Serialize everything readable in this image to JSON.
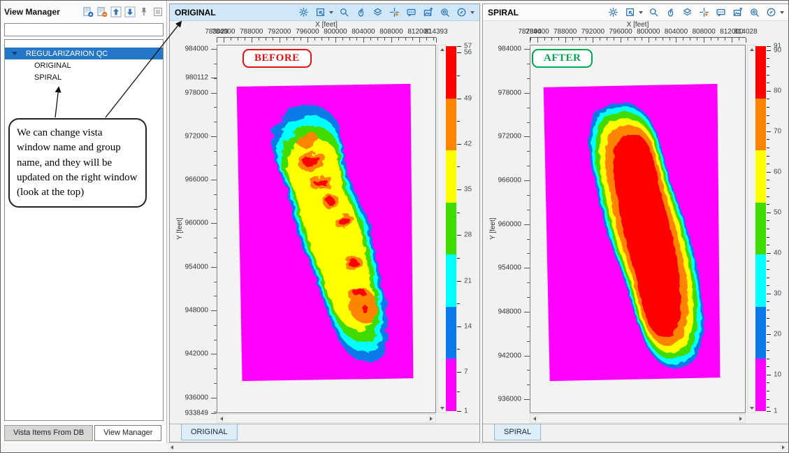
{
  "palette": {
    "red": "#ff0000",
    "orange": "#ff8400",
    "yellow": "#ffff00",
    "green": "#3fdc00",
    "cyan": "#00ffff",
    "blue": "#0a78e8",
    "magenta": "#ff00ff",
    "accent_blue": "#2e75b6",
    "selection_blue": "#2577c9",
    "active_titlebar": "#cfe7f8"
  },
  "left_panel": {
    "title": "View Manager",
    "toolbar": [
      {
        "name": "add-view-icon"
      },
      {
        "name": "remove-view-icon"
      },
      {
        "name": "move-up-icon"
      },
      {
        "name": "move-down-icon"
      },
      {
        "name": "pin-icon"
      },
      {
        "name": "detach-icon"
      }
    ],
    "filter_value": "",
    "tree": {
      "group": "REGULARIZARION QC",
      "items": [
        "ORIGINAL",
        "SPIRAL"
      ]
    },
    "callout": "We can change vista window name and group name, and they will be updated on the right window (look at the top)",
    "tabs": [
      {
        "label": "Vista Items From DB",
        "active": false
      },
      {
        "label": "View Manager",
        "active": true
      }
    ]
  },
  "window_toolbar": [
    {
      "name": "settings-gear-icon"
    },
    {
      "name": "fit-view-icon",
      "caret": true
    },
    {
      "name": "zoom-icon"
    },
    {
      "name": "rubber-band-zoom-icon"
    },
    {
      "name": "layers-icon"
    },
    {
      "name": "crosshair-pick-icon"
    },
    {
      "name": "comment-icon"
    },
    {
      "name": "snapshot-icon"
    },
    {
      "name": "find-zoom-icon"
    },
    {
      "name": "compass-icon",
      "caret": true
    }
  ],
  "windows": [
    {
      "title": "ORIGINAL",
      "tab": "ORIGINAL",
      "active": true,
      "annotation": {
        "label": "BEFORE",
        "color": "#e01212"
      },
      "xaxis": {
        "label": "X [feet]",
        "min": 783029,
        "max": 814393,
        "minor": 1000,
        "ticks": [
          {
            "v": 783029,
            "label": "783029"
          },
          {
            "v": 784000,
            "label": "784000"
          },
          {
            "v": 788000,
            "label": "788000"
          },
          {
            "v": 792000,
            "label": "792000"
          },
          {
            "v": 796000,
            "label": "796000"
          },
          {
            "v": 800000,
            "label": "800000"
          },
          {
            "v": 804000,
            "label": "804000"
          },
          {
            "v": 808000,
            "label": "808000"
          },
          {
            "v": 812000,
            "label": "812000"
          },
          {
            "v": 814393,
            "label": "814393"
          }
        ]
      },
      "yaxis": {
        "label": "Y [feet]",
        "min": 933849,
        "max": 984600,
        "minor": 2000,
        "ticks": [
          {
            "v": 984000,
            "label": "984000"
          },
          {
            "v": 980112,
            "label": "980112"
          },
          {
            "v": 978000,
            "label": "978000"
          },
          {
            "v": 972000,
            "label": "972000"
          },
          {
            "v": 966000,
            "label": "966000"
          },
          {
            "v": 960000,
            "label": "960000"
          },
          {
            "v": 954000,
            "label": "954000"
          },
          {
            "v": 948000,
            "label": "948000"
          },
          {
            "v": 942000,
            "label": "942000"
          },
          {
            "v": 936000,
            "label": "936000"
          },
          {
            "v": 933849,
            "label": "933849"
          }
        ]
      },
      "colorbar": {
        "min": 1,
        "max": 57,
        "bands": [
          {
            "from": 49,
            "to": 57,
            "color": "red"
          },
          {
            "from": 41,
            "to": 49,
            "color": "orange"
          },
          {
            "from": 33,
            "to": 41,
            "color": "yellow"
          },
          {
            "from": 25,
            "to": 33,
            "color": "green"
          },
          {
            "from": 17,
            "to": 25,
            "color": "cyan"
          },
          {
            "from": 9,
            "to": 17,
            "color": "blue"
          },
          {
            "from": 1,
            "to": 9,
            "color": "magenta"
          }
        ],
        "ticks": [
          {
            "v": 57,
            "label": "57"
          },
          {
            "v": 56,
            "label": "56"
          },
          {
            "v": 52.5
          },
          {
            "v": 49,
            "label": "49"
          },
          {
            "v": 45.5
          },
          {
            "v": 42,
            "label": "42"
          },
          {
            "v": 38.5
          },
          {
            "v": 35,
            "label": "35"
          },
          {
            "v": 31.5
          },
          {
            "v": 28,
            "label": "28"
          },
          {
            "v": 24.5
          },
          {
            "v": 21,
            "label": "21"
          },
          {
            "v": 17.5
          },
          {
            "v": 14,
            "label": "14"
          },
          {
            "v": 10.5
          },
          {
            "v": 7,
            "label": "7"
          },
          {
            "v": 4
          },
          {
            "v": 1,
            "label": "1"
          }
        ]
      }
    },
    {
      "title": "SPIRAL",
      "tab": "SPIRAL",
      "active": false,
      "annotation": {
        "label": "AFTER",
        "color": "#00a550"
      },
      "xaxis": {
        "label": "X [feet]",
        "min": 782894,
        "max": 814028,
        "minor": 1000,
        "ticks": [
          {
            "v": 782894,
            "label": "782894"
          },
          {
            "v": 784000,
            "label": "784000"
          },
          {
            "v": 788000,
            "label": "788000"
          },
          {
            "v": 792000,
            "label": "792000"
          },
          {
            "v": 796000,
            "label": "796000"
          },
          {
            "v": 800000,
            "label": "800000"
          },
          {
            "v": 804000,
            "label": "804000"
          },
          {
            "v": 808000,
            "label": "808000"
          },
          {
            "v": 812000,
            "label": "812000"
          },
          {
            "v": 814028,
            "label": "814028"
          }
        ]
      },
      "yaxis": {
        "label": "Y [feet]",
        "min": 934100,
        "max": 984600,
        "minor": 2000,
        "ticks": [
          {
            "v": 984000,
            "label": "984000"
          },
          {
            "v": 978000,
            "label": "978000"
          },
          {
            "v": 972000,
            "label": "972000"
          },
          {
            "v": 966000,
            "label": "966000"
          },
          {
            "v": 960000,
            "label": "960000"
          },
          {
            "v": 954000,
            "label": "954000"
          },
          {
            "v": 948000,
            "label": "948000"
          },
          {
            "v": 942000,
            "label": "942000"
          },
          {
            "v": 936000,
            "label": "936000"
          }
        ]
      },
      "colorbar": {
        "min": 1,
        "max": 91,
        "bands": [
          {
            "from": 78.1,
            "to": 91,
            "color": "red"
          },
          {
            "from": 65.3,
            "to": 78.1,
            "color": "orange"
          },
          {
            "from": 52.4,
            "to": 65.3,
            "color": "yellow"
          },
          {
            "from": 39.6,
            "to": 52.4,
            "color": "green"
          },
          {
            "from": 26.7,
            "to": 39.6,
            "color": "cyan"
          },
          {
            "from": 13.9,
            "to": 26.7,
            "color": "blue"
          },
          {
            "from": 1,
            "to": 13.9,
            "color": "magenta"
          }
        ],
        "ticks": [
          {
            "v": 91,
            "label": "91"
          },
          {
            "v": 90,
            "label": "90"
          },
          {
            "v": 88
          },
          {
            "v": 86
          },
          {
            "v": 84
          },
          {
            "v": 82
          },
          {
            "v": 80,
            "label": "80"
          },
          {
            "v": 78
          },
          {
            "v": 76
          },
          {
            "v": 74
          },
          {
            "v": 72
          },
          {
            "v": 70,
            "label": "70"
          },
          {
            "v": 68
          },
          {
            "v": 66
          },
          {
            "v": 64
          },
          {
            "v": 62
          },
          {
            "v": 60,
            "label": "60"
          },
          {
            "v": 58
          },
          {
            "v": 56
          },
          {
            "v": 54
          },
          {
            "v": 52
          },
          {
            "v": 50,
            "label": "50"
          },
          {
            "v": 48
          },
          {
            "v": 46
          },
          {
            "v": 44
          },
          {
            "v": 42
          },
          {
            "v": 40,
            "label": "40"
          },
          {
            "v": 38
          },
          {
            "v": 36
          },
          {
            "v": 34
          },
          {
            "v": 32
          },
          {
            "v": 30,
            "label": "30"
          },
          {
            "v": 28
          },
          {
            "v": 26
          },
          {
            "v": 24
          },
          {
            "v": 22
          },
          {
            "v": 20,
            "label": "20"
          },
          {
            "v": 18
          },
          {
            "v": 16
          },
          {
            "v": 14
          },
          {
            "v": 12
          },
          {
            "v": 10,
            "label": "10"
          },
          {
            "v": 8
          },
          {
            "v": 6
          },
          {
            "v": 4
          },
          {
            "v": 2
          },
          {
            "v": 1,
            "label": "1"
          }
        ]
      }
    }
  ],
  "chart_data": [
    {
      "type": "heatmap",
      "title": "ORIGINAL (BEFORE)",
      "xlabel": "X [feet]",
      "ylabel": "Y [feet]",
      "x_range": [
        783029,
        814393
      ],
      "y_range": [
        933849,
        984000
      ],
      "fold_range": [
        1,
        57
      ],
      "colorbar_ticks": [
        57,
        56,
        49,
        42,
        35,
        28,
        21,
        14,
        7,
        1
      ],
      "legend_position": "right",
      "description": "CMP fold map before regularization: NW-SE elongated coverage with irregular patchy high-fold red/orange spots inside rainbow contours, over a magenta low-fold survey rectangle"
    },
    {
      "type": "heatmap",
      "title": "SPIRAL (AFTER)",
      "xlabel": "X [feet]",
      "ylabel": "Y [feet]",
      "x_range": [
        782894,
        814028
      ],
      "y_range": [
        936000,
        984000
      ],
      "fold_range": [
        1,
        91
      ],
      "colorbar_ticks": [
        91,
        90,
        80,
        70,
        60,
        50,
        40,
        30,
        20,
        10,
        1
      ],
      "legend_position": "right",
      "description": "CMP fold map after spiral regularization: smooth elongated fold body with continuous red core and concentric orange/yellow/green/cyan/blue rings over magenta rectangle"
    }
  ]
}
